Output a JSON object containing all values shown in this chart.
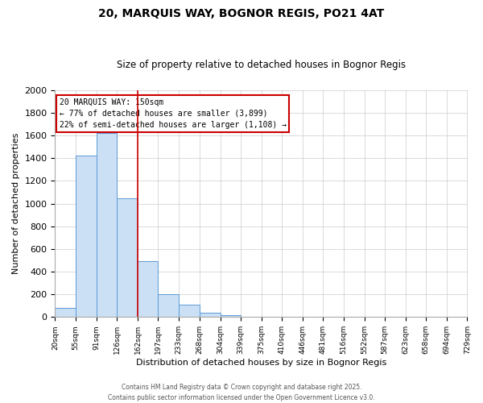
{
  "title": "20, MARQUIS WAY, BOGNOR REGIS, PO21 4AT",
  "subtitle": "Size of property relative to detached houses in Bognor Regis",
  "xlabel": "Distribution of detached houses by size in Bognor Regis",
  "ylabel": "Number of detached properties",
  "bar_left_edges": [
    20,
    55,
    91,
    126,
    162,
    197,
    233,
    268,
    304,
    339,
    375,
    410,
    446,
    481,
    516,
    552,
    587,
    623,
    658,
    694
  ],
  "bar_heights": [
    80,
    1420,
    1620,
    1050,
    490,
    200,
    110,
    40,
    20,
    5,
    2,
    1,
    0,
    0,
    0,
    0,
    0,
    0,
    0,
    0
  ],
  "bar_color": "#cce0f5",
  "bar_edgecolor": "#5b9bd5",
  "property_line_x": 162,
  "property_line_color": "#cc0000",
  "ylim": [
    0,
    2000
  ],
  "yticks": [
    0,
    200,
    400,
    600,
    800,
    1000,
    1200,
    1400,
    1600,
    1800,
    2000
  ],
  "xtick_labels": [
    "20sqm",
    "55sqm",
    "91sqm",
    "126sqm",
    "162sqm",
    "197sqm",
    "233sqm",
    "268sqm",
    "304sqm",
    "339sqm",
    "375sqm",
    "410sqm",
    "446sqm",
    "481sqm",
    "516sqm",
    "552sqm",
    "587sqm",
    "623sqm",
    "658sqm",
    "694sqm",
    "729sqm"
  ],
  "annotation_title": "20 MARQUIS WAY: 150sqm",
  "annotation_line1": "← 77% of detached houses are smaller (3,899)",
  "annotation_line2": "22% of semi-detached houses are larger (1,108) →",
  "annotation_box_facecolor": "#ffffff",
  "annotation_box_edgecolor": "#cc0000",
  "grid_color": "#cccccc",
  "bg_color": "#ffffff",
  "title_fontsize": 10,
  "subtitle_fontsize": 8.5,
  "footnote1": "Contains HM Land Registry data © Crown copyright and database right 2025.",
  "footnote2": "Contains public sector information licensed under the Open Government Licence v3.0."
}
